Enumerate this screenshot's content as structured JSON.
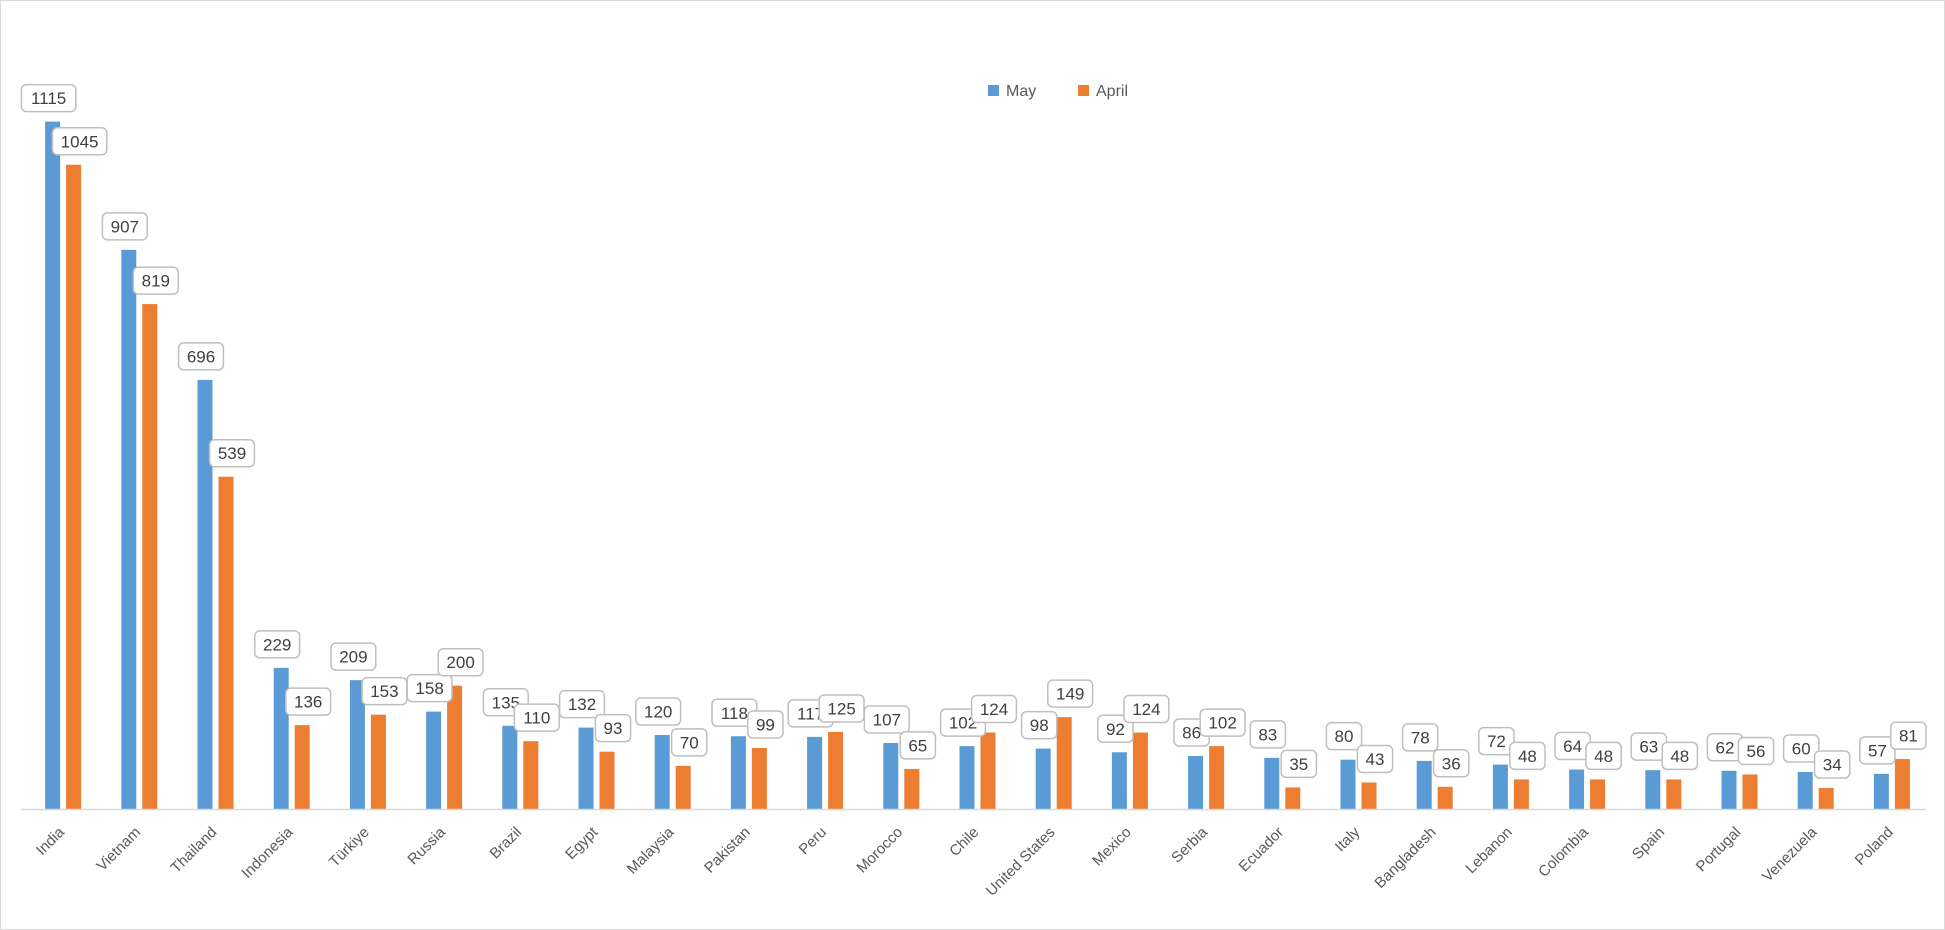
{
  "chart_data": {
    "type": "bar",
    "title": "",
    "xlabel": "",
    "ylabel": "",
    "ylim": [
      0,
      1150
    ],
    "grid": false,
    "legend_position": "top",
    "categories": [
      "India",
      "Vietnam",
      "Thailand",
      "Indonesia",
      "Türkiye",
      "Russia",
      "Brazil",
      "Egypt",
      "Malaysia",
      "Pakistan",
      "Peru",
      "Morocco",
      "Chile",
      "United States",
      "Mexico",
      "Serbia",
      "Ecuador",
      "Italy",
      "Bangladesh",
      "Lebanon",
      "Colombia",
      "Spain",
      "Portugal",
      "Venezuela",
      "Poland"
    ],
    "series": [
      {
        "name": "May",
        "color": "#5b9bd5",
        "values": [
          1115,
          907,
          696,
          229,
          209,
          158,
          135,
          132,
          120,
          118,
          117,
          107,
          102,
          98,
          92,
          86,
          83,
          80,
          78,
          72,
          64,
          63,
          62,
          60,
          57
        ]
      },
      {
        "name": "April",
        "color": "#ed7d31",
        "values": [
          1045,
          819,
          539,
          136,
          153,
          200,
          110,
          93,
          70,
          99,
          125,
          65,
          124,
          149,
          124,
          102,
          35,
          43,
          36,
          48,
          48,
          48,
          56,
          34,
          81
        ]
      }
    ]
  }
}
